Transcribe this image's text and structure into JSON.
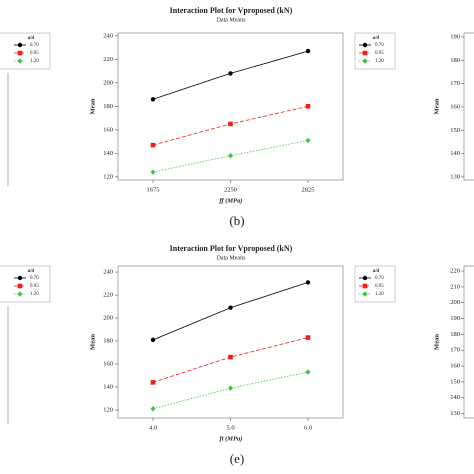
{
  "chart_data": [
    {
      "type": "line",
      "title": "Interaction Plot for Vproposed (kN)",
      "subtitle": "Data Means",
      "xlabel": "ff (MPa)",
      "ylabel": "Mean",
      "caption": "(b)",
      "categories": [
        "1675",
        "2250",
        "2825"
      ],
      "legend_title": "a/d",
      "legend": "upper right outside",
      "series": [
        {
          "name": "0.70",
          "color": "#000000",
          "marker": "circle",
          "dash": "solid",
          "values": [
            186,
            208,
            227
          ]
        },
        {
          "name": "0.95",
          "color": "#e8211c",
          "marker": "square",
          "dash": "dashed",
          "values": [
            147,
            165,
            180
          ]
        },
        {
          "name": "1.20",
          "color": "#3fc43f",
          "marker": "diamond",
          "dash": "dotted",
          "values": [
            124,
            138,
            151
          ]
        }
      ],
      "ylim": [
        117.3,
        242.4
      ],
      "yticks": [
        120,
        140,
        160,
        180,
        200,
        220,
        240
      ]
    },
    {
      "type": "line",
      "title": "Interaction Plot for Vproposed (kN)",
      "subtitle": "Data Means",
      "xlabel": "ft (MPa)",
      "ylabel": "Mean",
      "caption": "(e)",
      "categories": [
        "4.0",
        "5.0",
        "6.0"
      ],
      "legend_title": "a/d",
      "legend": "upper right outside",
      "series": [
        {
          "name": "0.70",
          "color": "#000000",
          "marker": "circle",
          "dash": "solid",
          "values": [
            181,
            209,
            231
          ]
        },
        {
          "name": "0.95",
          "color": "#e8211c",
          "marker": "square",
          "dash": "dashed",
          "values": [
            144,
            166,
            183
          ]
        },
        {
          "name": "1.20",
          "color": "#3fc43f",
          "marker": "diamond",
          "dash": "dotted",
          "values": [
            121,
            139,
            153
          ]
        }
      ],
      "ylim": [
        113.0,
        245.3
      ],
      "yticks": [
        120,
        140,
        160,
        180,
        200,
        220,
        240
      ]
    }
  ],
  "side_panels": {
    "left_legends": [
      {
        "title": "a/d",
        "entries": [
          "0.70",
          "0.95",
          "1.20"
        ]
      },
      {
        "title": "a/d",
        "entries": [
          "0.70",
          "0.95",
          "1.20"
        ]
      }
    ],
    "right_axes": [
      {
        "ylabel": "Mean",
        "ylim": [
          128.7,
          191.7
        ],
        "yticks": [
          130,
          140,
          150,
          160,
          170,
          180,
          190
        ]
      },
      {
        "ylabel": "Mean",
        "ylim": [
          127.2,
          223.2
        ],
        "yticks": [
          130,
          140,
          150,
          160,
          170,
          180,
          190,
          200,
          210,
          220
        ]
      }
    ]
  }
}
